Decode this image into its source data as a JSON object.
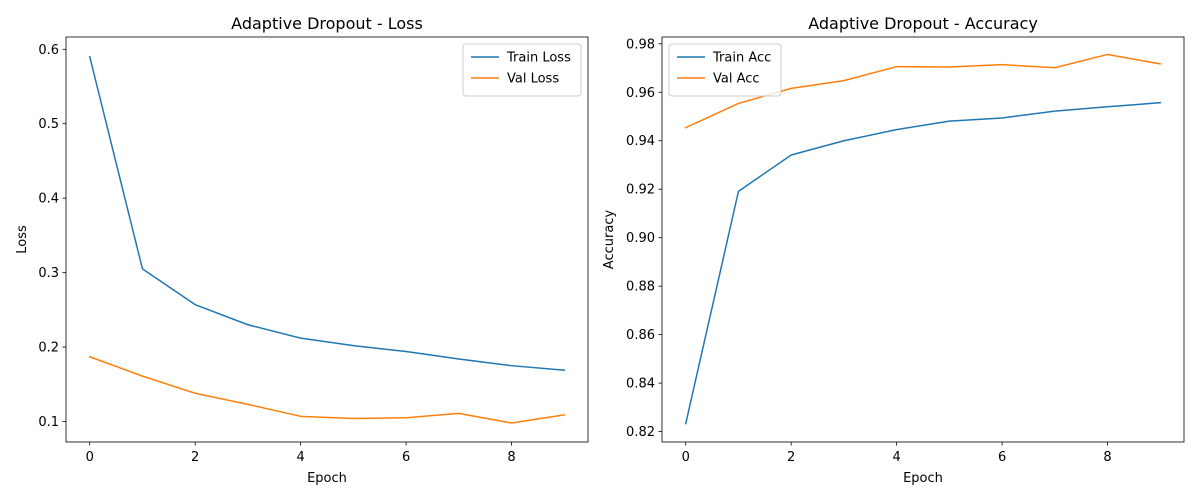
{
  "colors": {
    "train": "#1f77b4",
    "val": "#ff7f0e"
  },
  "chart_data": [
    {
      "type": "line",
      "title": "Adaptive Dropout - Loss",
      "xlabel": "Epoch",
      "ylabel": "Loss",
      "xlim": [
        -0.45,
        9.45
      ],
      "ylim": [
        0.0725,
        0.6165
      ],
      "xticks": [
        0,
        2,
        4,
        6,
        8
      ],
      "xtick_labels": [
        "0",
        "2",
        "4",
        "6",
        "8"
      ],
      "yticks": [
        0.1,
        0.2,
        0.3,
        0.4,
        0.5,
        0.6
      ],
      "ytick_labels": [
        "0.1",
        "0.2",
        "0.3",
        "0.4",
        "0.5",
        "0.6"
      ],
      "legend_position": "top-right",
      "grid": false,
      "x": [
        0,
        1,
        2,
        3,
        4,
        5,
        6,
        7,
        8,
        9
      ],
      "series": [
        {
          "name": "Train Loss",
          "color": "#1f77b4",
          "values": [
            0.59,
            0.305,
            0.257,
            0.23,
            0.212,
            0.202,
            0.194,
            0.184,
            0.175,
            0.169
          ]
        },
        {
          "name": "Val Loss",
          "color": "#ff7f0e",
          "values": [
            0.187,
            0.161,
            0.138,
            0.123,
            0.107,
            0.104,
            0.105,
            0.111,
            0.098,
            0.109
          ]
        }
      ]
    },
    {
      "type": "line",
      "title": "Adaptive Dropout - Accuracy",
      "xlabel": "Epoch",
      "ylabel": "Accuracy",
      "xlim": [
        -0.45,
        9.45
      ],
      "ylim": [
        0.8157,
        0.9828
      ],
      "xticks": [
        0,
        2,
        4,
        6,
        8
      ],
      "xtick_labels": [
        "0",
        "2",
        "4",
        "6",
        "8"
      ],
      "yticks": [
        0.82,
        0.84,
        0.86,
        0.88,
        0.9,
        0.92,
        0.94,
        0.96,
        0.98
      ],
      "ytick_labels": [
        "0.82",
        "0.84",
        "0.86",
        "0.88",
        "0.90",
        "0.92",
        "0.94",
        "0.96",
        "0.98"
      ],
      "legend_position": "top-left",
      "grid": false,
      "x": [
        0,
        1,
        2,
        3,
        4,
        5,
        6,
        7,
        8,
        9
      ],
      "series": [
        {
          "name": "Train Acc",
          "color": "#1f77b4",
          "values": [
            0.8233,
            0.9191,
            0.9341,
            0.94,
            0.9446,
            0.9481,
            0.9494,
            0.9522,
            0.954,
            0.9557
          ]
        },
        {
          "name": "Val Acc",
          "color": "#ff7f0e",
          "values": [
            0.9454,
            0.9554,
            0.9616,
            0.9648,
            0.9706,
            0.9704,
            0.9714,
            0.9701,
            0.9756,
            0.9717
          ]
        }
      ]
    }
  ]
}
